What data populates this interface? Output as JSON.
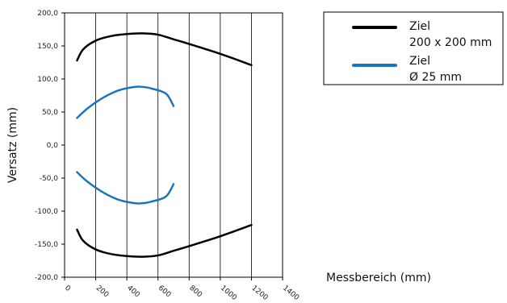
{
  "chart_data": {
    "type": "line",
    "xlabel": "Messbereich (mm)",
    "ylabel": "Versatz (mm)",
    "xlim": [
      0,
      1400
    ],
    "ylim": [
      -200,
      200
    ],
    "x_ticks": [
      0,
      200,
      400,
      600,
      800,
      1000,
      1200,
      1400
    ],
    "x_tick_labels": [
      "0",
      "200",
      "400",
      "600",
      "800",
      "1000",
      "1200",
      "1400"
    ],
    "y_ticks": [
      200,
      150,
      100,
      50,
      0,
      -50,
      -100,
      -150,
      -200
    ],
    "y_tick_labels": [
      "200,0",
      "150,0",
      "100,0",
      "50,0",
      "0,0",
      "-50,0",
      "-100,0",
      "-150,0",
      "-200,0"
    ],
    "grid": {
      "vertical": true,
      "horizontal": false
    },
    "legend_position": "top-right",
    "series": [
      {
        "legend": [
          "Ziel",
          "200 x 200 mm"
        ],
        "color": "#000000",
        "branches": [
          {
            "x": [
              80,
              120,
              200,
              300,
              400,
              500,
              600,
              700,
              800,
              1000,
              1200
            ],
            "y": [
              128,
              145,
              158,
              165,
              168,
              169,
              167,
              160,
              153,
              138,
              121
            ]
          },
          {
            "x": [
              80,
              120,
              200,
              300,
              400,
              500,
              600,
              700,
              800,
              1000,
              1200
            ],
            "y": [
              -128,
              -145,
              -158,
              -165,
              -168,
              -169,
              -167,
              -160,
              -153,
              -138,
              -121
            ]
          }
        ]
      },
      {
        "legend": [
          "Ziel",
          "Ø 25 mm"
        ],
        "color": "#1a75bc",
        "branches": [
          {
            "x": [
              80,
              150,
              250,
              350,
              450,
              500,
              550,
              650,
              700
            ],
            "y": [
              41,
              56,
              72,
              83,
              88,
              88,
              86,
              78,
              59
            ]
          },
          {
            "x": [
              80,
              150,
              250,
              350,
              450,
              500,
              550,
              650,
              700
            ],
            "y": [
              -41,
              -56,
              -72,
              -83,
              -88,
              -88,
              -86,
              -78,
              -59
            ]
          }
        ]
      }
    ]
  }
}
